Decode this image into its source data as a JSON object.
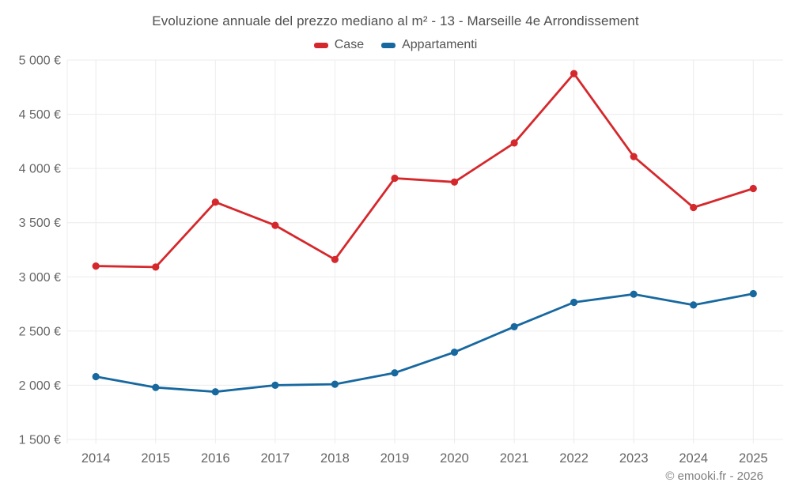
{
  "title": "Evoluzione annuale del prezzo mediano al m² - 13 - Marseille 4e Arrondissement",
  "legend": [
    {
      "label": "Case",
      "color": "#d5282c"
    },
    {
      "label": "Appartamenti",
      "color": "#17689f"
    }
  ],
  "footer": "© emooki.fr - 2026",
  "colors": {
    "grid": "#ececec",
    "axis_text": "#666666",
    "title_text": "#4f4f4f",
    "footer_text": "#7e7e7e"
  },
  "chart_data": {
    "type": "line",
    "title": "Evoluzione annuale del prezzo mediano al m² - 13 - Marseille 4e Arrondissement",
    "xlabel": "",
    "ylabel": "",
    "categories": [
      "2014",
      "2015",
      "2016",
      "2017",
      "2018",
      "2019",
      "2020",
      "2021",
      "2022",
      "2023",
      "2024",
      "2025"
    ],
    "series": [
      {
        "name": "Case",
        "color": "#d5282c",
        "values": [
          3100,
          3090,
          3690,
          3475,
          3160,
          3910,
          3875,
          4235,
          4875,
          4110,
          3640,
          3815
        ]
      },
      {
        "name": "Appartamenti",
        "color": "#17689f",
        "values": [
          2080,
          1980,
          1940,
          2000,
          2010,
          2115,
          2305,
          2540,
          2765,
          2840,
          2740,
          2845
        ]
      }
    ],
    "ylim": [
      1500,
      5000
    ],
    "yticks": [
      {
        "value": 5000,
        "label": "5 000 €"
      },
      {
        "value": 4500,
        "label": "4 500 €"
      },
      {
        "value": 4000,
        "label": "4 000 €"
      },
      {
        "value": 3500,
        "label": "3 500 €"
      },
      {
        "value": 3000,
        "label": "3 000 €"
      },
      {
        "value": 2500,
        "label": "2 500 €"
      },
      {
        "value": 2000,
        "label": "2 000 €"
      },
      {
        "value": 1500,
        "label": "1 500 €"
      }
    ],
    "grid": true,
    "legend_position": "top",
    "marker": "circle"
  }
}
